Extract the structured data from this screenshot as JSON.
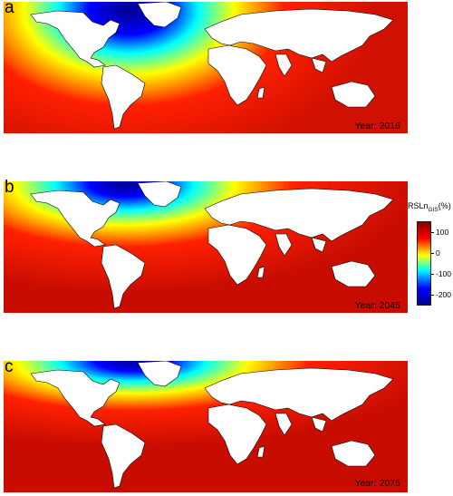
{
  "panels": [
    {
      "letter": "a",
      "year_text": "Year: 2016"
    },
    {
      "letter": "b",
      "year_text": "Year: 2045"
    },
    {
      "letter": "c",
      "year_text": "Year: 2075"
    }
  ],
  "colorbar": {
    "title_main": "RSLn",
    "title_sub": "GIS",
    "title_unit": "(%)",
    "ticks": [
      "100",
      "0",
      "-100",
      "-200"
    ],
    "range": [
      -250,
      150
    ],
    "colors": [
      "#00008f",
      "#0000ff",
      "#00ffff",
      "#ffff00",
      "#ff0000",
      "#800000"
    ]
  }
}
